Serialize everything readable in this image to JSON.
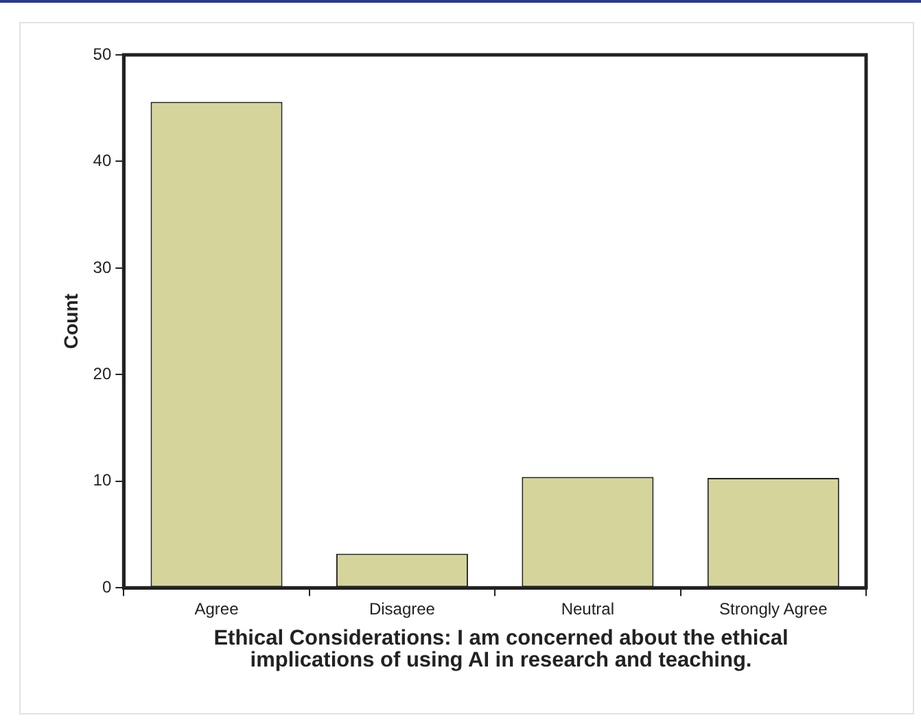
{
  "chart_data": {
    "type": "bar",
    "xlabel": "Ethical Considerations: I am concerned about the ethical implications of using AI in research and teaching.",
    "ylabel": "Count",
    "categories": [
      "Agree",
      "Disagree",
      "Neutral",
      "Strongly Agree"
    ],
    "values": [
      45.6,
      3.2,
      10.4,
      10.3
    ],
    "color": "#d5d59b",
    "ylim": [
      0,
      50
    ],
    "yticks": [
      0,
      10,
      20,
      30,
      40,
      50
    ],
    "grid": false,
    "legend": false
  }
}
